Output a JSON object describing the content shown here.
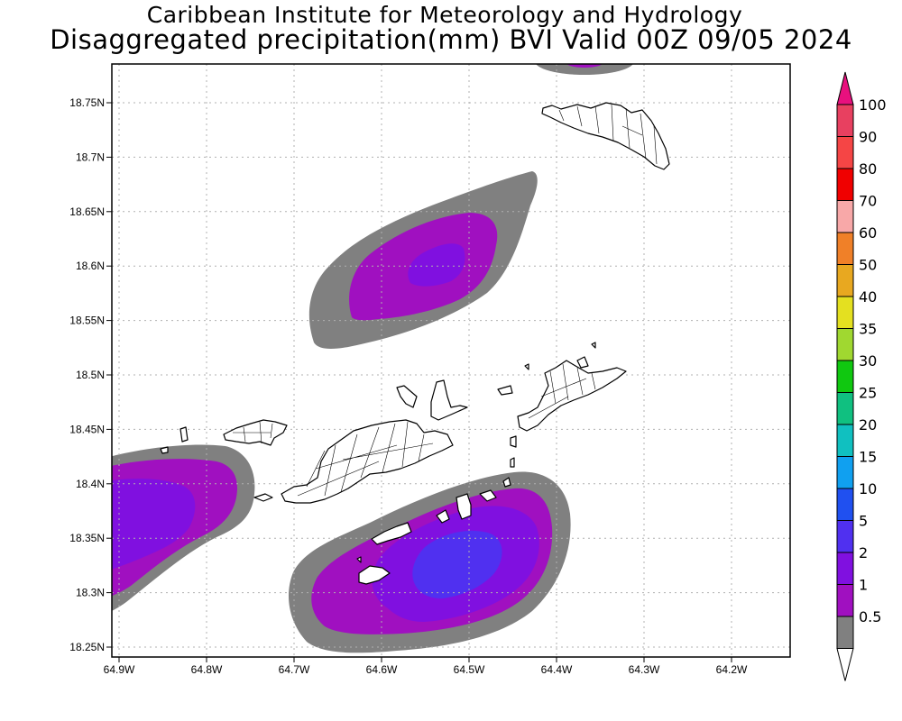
{
  "title_line1": "Caribbean Institute for Meteorology and Hydrology",
  "title_line2": "Disaggregated precipitation(mm) BVI Valid 00Z 09/05 2024",
  "y_ticks": [
    "18.75N",
    "18.7N",
    "18.65N",
    "18.6N",
    "18.55N",
    "18.5N",
    "18.45N",
    "18.4N",
    "18.35N",
    "18.3N",
    "18.25N"
  ],
  "x_ticks": [
    "64.9W",
    "64.8W",
    "64.7W",
    "64.6W",
    "64.5W",
    "64.4W",
    "64.3W",
    "64.2W"
  ],
  "colorbar": {
    "levels": [
      {
        "label": "100",
        "color": "#e84060"
      },
      {
        "label": "90",
        "color": "#f54545"
      },
      {
        "label": "80",
        "color": "#f00000"
      },
      {
        "label": "70",
        "color": "#f8a8a8"
      },
      {
        "label": "60",
        "color": "#f08028"
      },
      {
        "label": "50",
        "color": "#e8a820"
      },
      {
        "label": "40",
        "color": "#e4e020"
      },
      {
        "label": "35",
        "color": "#a0d830"
      },
      {
        "label": "30",
        "color": "#10c810"
      },
      {
        "label": "25",
        "color": "#10c080"
      },
      {
        "label": "20",
        "color": "#10c0c0"
      },
      {
        "label": "15",
        "color": "#10a0f0"
      },
      {
        "label": "10",
        "color": "#2050f0"
      },
      {
        "label": "5",
        "color": "#5030f0"
      },
      {
        "label": "2",
        "color": "#8010e0"
      },
      {
        "label": "1",
        "color": "#a010c0"
      },
      {
        "label": "0.5",
        "color": "#808080"
      }
    ],
    "top_triangle_color": "#e8107e",
    "bottom_triangle_color": "#ffffff"
  },
  "colors": {
    "level_0_5": "#808080",
    "level_1": "#a010c0",
    "level_2": "#8010e0",
    "level_5": "#5030f0",
    "land": "#ffffff",
    "coast": "#000000",
    "grid": "#b0b0b0"
  }
}
